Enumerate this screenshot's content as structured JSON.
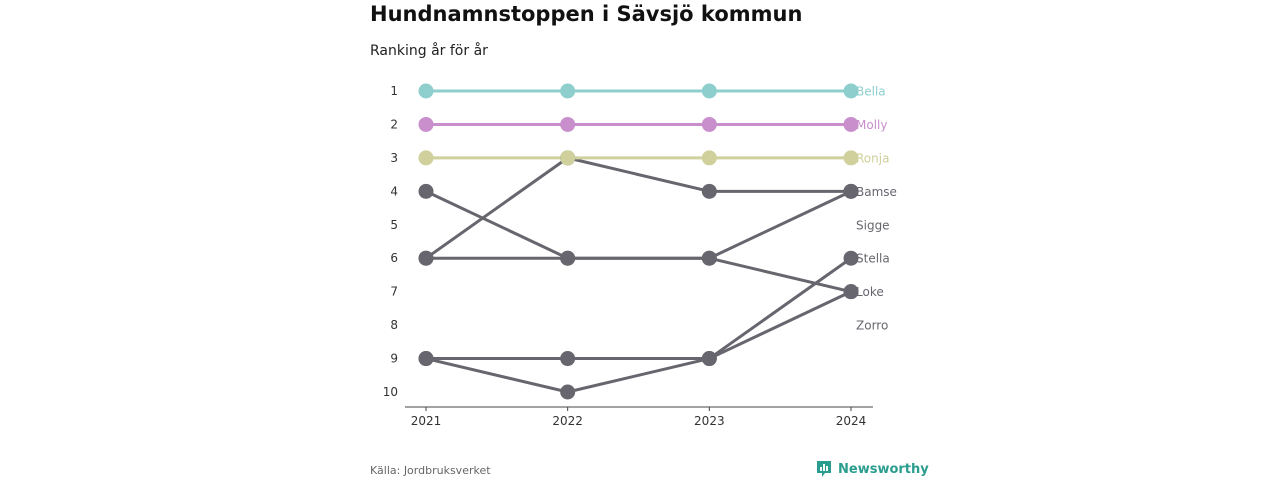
{
  "title": "Hundnamnstoppen i Sävsjö kommun",
  "subtitle": "Ranking år för år",
  "source": "Källa: Jordbruksverket",
  "brand": {
    "name": "Newsworthy",
    "icon": "newsworthy-logo-icon",
    "color": "#2a9d8f"
  },
  "chart_data": {
    "type": "line",
    "x": [
      "2021",
      "2022",
      "2023",
      "2024"
    ],
    "y_ticks": [
      1,
      2,
      3,
      4,
      5,
      6,
      7,
      8,
      9,
      10
    ],
    "ylim": [
      1,
      10
    ],
    "y_reversed": true,
    "grid": false,
    "series": [
      {
        "name": "Bella",
        "values": [
          1,
          1,
          1,
          1
        ],
        "color": "#8ecfce"
      },
      {
        "name": "Molly",
        "values": [
          2,
          2,
          2,
          2
        ],
        "color": "#c88fcc"
      },
      {
        "name": "Ronja",
        "values": [
          3,
          3,
          3,
          3
        ],
        "color": "#cfd09b"
      },
      {
        "name": "Bamse",
        "values": [
          6,
          3,
          4,
          4
        ],
        "color": "#67666e"
      },
      {
        "name": "Sigge",
        "values": [
          4,
          6,
          6,
          7
        ],
        "color": "#67666e"
      },
      {
        "name": "Stella",
        "values": [
          9,
          10,
          9,
          6
        ],
        "color": "#67666e"
      },
      {
        "name": "Loke",
        "values": [
          9,
          9,
          9,
          7
        ],
        "color": "#67666e"
      },
      {
        "name": "Zorro",
        "values": [
          6,
          6,
          6,
          4
        ],
        "color": "#67666e"
      }
    ],
    "end_labels": [
      {
        "text": "Bella",
        "rank": 1,
        "color": "#8ecfce"
      },
      {
        "text": "Molly",
        "rank": 2,
        "color": "#c88fcc"
      },
      {
        "text": "Ronja",
        "rank": 3,
        "color": "#cfd09b"
      },
      {
        "text": "Bamse",
        "rank": 4,
        "color": "#67666e"
      },
      {
        "text": "Sigge",
        "rank": 5,
        "color": "#67666e"
      },
      {
        "text": "Stella",
        "rank": 6,
        "color": "#67666e"
      },
      {
        "text": "Loke",
        "rank": 7,
        "color": "#67666e"
      },
      {
        "text": "Zorro",
        "rank": 8,
        "color": "#67666e"
      }
    ]
  }
}
